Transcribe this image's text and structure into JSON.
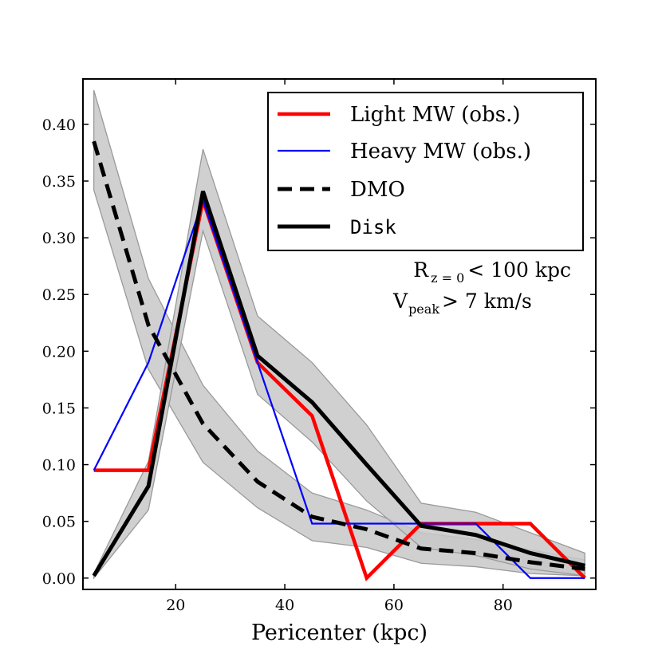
{
  "chart_data": {
    "type": "line",
    "title": "",
    "xlabel": "Pericenter (kpc)",
    "ylabel": "",
    "xlim": [
      3,
      97
    ],
    "ylim": [
      -0.01,
      0.44
    ],
    "xticks": [
      20,
      40,
      60,
      80
    ],
    "xtick_labels": [
      "20",
      "40",
      "60",
      "80"
    ],
    "yticks": [
      0.0,
      0.05,
      0.1,
      0.15,
      0.2,
      0.25,
      0.3,
      0.35,
      0.4
    ],
    "ytick_labels": [
      "0.00",
      "0.05",
      "0.10",
      "0.15",
      "0.20",
      "0.25",
      "0.30",
      "0.35",
      "0.40"
    ],
    "x": [
      5,
      15,
      25,
      35,
      45,
      55,
      65,
      75,
      85,
      95
    ],
    "series": [
      {
        "name": "Light MW (obs.)",
        "style": "solid",
        "color": "#ff0000",
        "values": [
          0.095,
          0.095,
          0.333,
          0.19,
          0.143,
          0.0,
          0.048,
          0.048,
          0.048,
          0.0
        ]
      },
      {
        "name": "Heavy MW (obs.)",
        "style": "solid-thin",
        "color": "#0000ff",
        "values": [
          0.095,
          0.19,
          0.333,
          0.19,
          0.048,
          0.048,
          0.048,
          0.048,
          0.0,
          0.0
        ]
      },
      {
        "name": "DMO",
        "style": "dashed",
        "color": "#000000",
        "values": [
          0.385,
          0.223,
          0.136,
          0.085,
          0.054,
          0.043,
          0.026,
          0.022,
          0.014,
          0.008
        ],
        "band_upper": [
          0.43,
          0.264,
          0.17,
          0.112,
          0.075,
          0.06,
          0.04,
          0.034,
          0.025,
          0.016
        ],
        "band_lower": [
          0.342,
          0.184,
          0.102,
          0.062,
          0.033,
          0.027,
          0.013,
          0.01,
          0.004,
          0.002
        ]
      },
      {
        "name": "Disk",
        "style": "solid-thick",
        "color": "#000000",
        "values": [
          0.002,
          0.081,
          0.341,
          0.196,
          0.155,
          0.1,
          0.046,
          0.038,
          0.022,
          0.011
        ],
        "band_upper": [
          0.004,
          0.103,
          0.378,
          0.231,
          0.19,
          0.135,
          0.066,
          0.058,
          0.04,
          0.022
        ],
        "band_lower": [
          0.0,
          0.06,
          0.306,
          0.162,
          0.12,
          0.068,
          0.027,
          0.02,
          0.008,
          0.002
        ]
      }
    ],
    "legend": {
      "placement": "top-right",
      "entries": [
        "Light MW (obs.)",
        "Heavy MW (obs.)",
        "DMO",
        "Disk"
      ]
    },
    "annotations": {
      "line1_main": "R",
      "line1_sub": "z = 0",
      "line1_rest": "< 100 kpc",
      "line2_main": "V",
      "line2_sub": "peak",
      "line2_rest": "> 7 km/s"
    },
    "colors": {
      "band": "#c8c8c8",
      "band_edge": "#9a9a9a"
    }
  }
}
